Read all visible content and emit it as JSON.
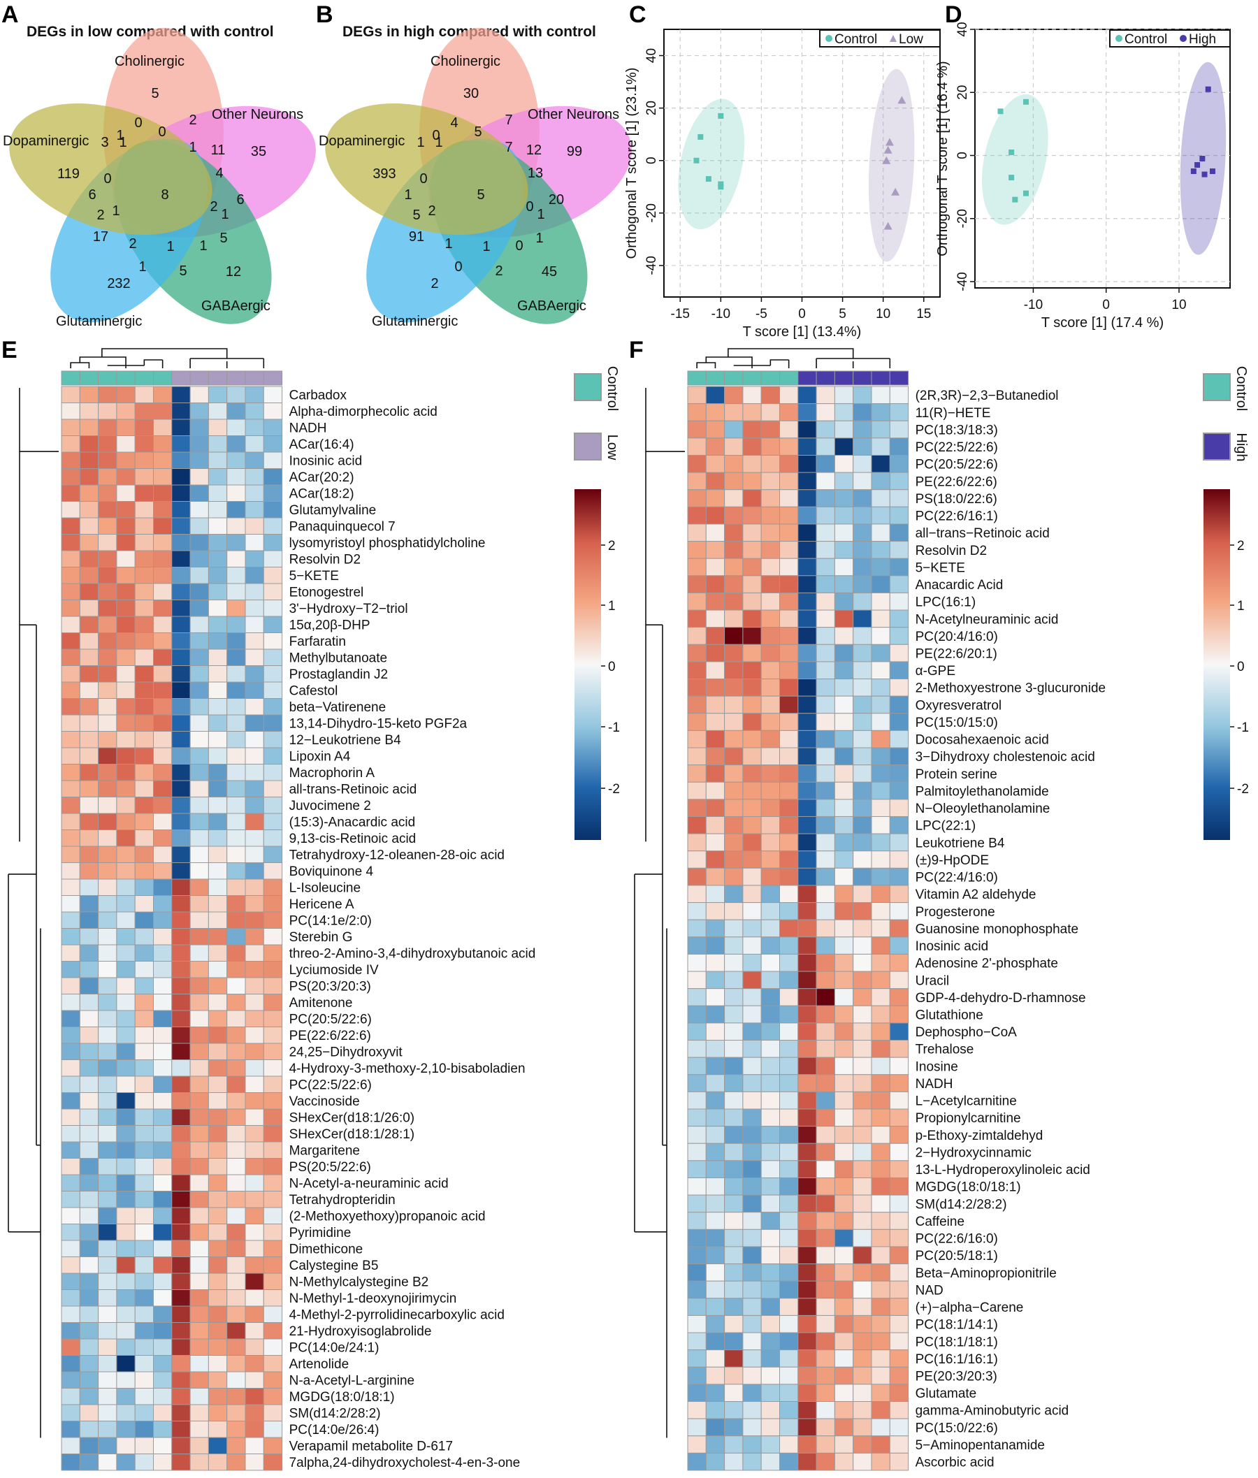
{
  "panel_letters": [
    "A",
    "B",
    "C",
    "D",
    "E",
    "F"
  ],
  "colors": {
    "control": "#5cc2b4",
    "low": "#a99cc0",
    "high": "#4a3ca8",
    "heat_low": "#08306b",
    "heat_mid": "#f7f7f7",
    "heat_high": "#67000d",
    "cholinergic": "#f7a596",
    "other_neurons": "#ee84e6",
    "gabaergic": "#33aa80",
    "glutaminergic": "#42b7ee",
    "dopaminergic": "#bdb549"
  },
  "venn": [
    {
      "title": "DEGs in low compared with control",
      "set_labels": [
        "Cholinergic",
        "Other Neurons",
        "GABAergic",
        "Glutaminergic",
        "Dopaminergic"
      ],
      "counts": [
        "5",
        "2",
        "0",
        "0",
        "1",
        "1",
        "11",
        "35",
        "4",
        "6",
        "2",
        "1",
        "5",
        "8",
        "12",
        "1",
        "1",
        "1",
        "5",
        "2",
        "232",
        "17",
        "2",
        "1",
        "6",
        "0",
        "119",
        "1",
        "3"
      ]
    },
    {
      "title": "DEGs in high compared with control",
      "set_labels": [
        "Cholinergic",
        "Other Neurons",
        "GABAergic",
        "Glutaminergic",
        "Dopaminergic"
      ],
      "counts": [
        "30",
        "7",
        "4",
        "5",
        "0",
        "7",
        "12",
        "99",
        "13",
        "20",
        "0",
        "1",
        "1",
        "5",
        "45",
        "1",
        "0",
        "0",
        "2",
        "1",
        "2",
        "91",
        "5",
        "2",
        "1",
        "0",
        "393",
        "1",
        "1"
      ]
    }
  ],
  "chart_data": [
    {
      "type": "scatter",
      "panel": "C",
      "xlabel": "T score [1] (13.4%)",
      "ylabel": "Orthogonal T score [1] (23.1%)",
      "xlim": [
        -17,
        17
      ],
      "ylim": [
        -52,
        50
      ],
      "xticks": [
        "-15",
        "-10",
        "-5",
        "0",
        "5",
        "10",
        "15"
      ],
      "yticks": [
        "40",
        "20",
        "0",
        "-20",
        "-40"
      ],
      "legend_position": "top-right",
      "grid": true,
      "series": [
        {
          "name": "Control",
          "marker": "square",
          "points": [
            [
              -10,
              17
            ],
            [
              -12.5,
              9
            ],
            [
              -13,
              0
            ],
            [
              -11.5,
              -7
            ],
            [
              -10,
              -9
            ],
            [
              -10,
              -10
            ]
          ]
        },
        {
          "name": "Low",
          "marker": "triangle",
          "points": [
            [
              12.3,
              23
            ],
            [
              10.8,
              7
            ],
            [
              10.6,
              4
            ],
            [
              10.4,
              0
            ],
            [
              11.5,
              -12
            ],
            [
              10.6,
              -25
            ]
          ]
        }
      ]
    },
    {
      "type": "scatter",
      "panel": "D",
      "xlabel": "T score [1] (17.4 %)",
      "ylabel": "Orthogonal T score [1] (16.4 %)",
      "xlim": [
        -18,
        17
      ],
      "ylim": [
        -42,
        40
      ],
      "xticks": [
        "-10",
        "0",
        "10"
      ],
      "yticks": [
        "40",
        "20",
        "0",
        "-20",
        "-40"
      ],
      "legend_position": "top-right",
      "grid": true,
      "series": [
        {
          "name": "Control",
          "marker": "square",
          "points": [
            [
              -14.5,
              14
            ],
            [
              -11,
              17
            ],
            [
              -13,
              1
            ],
            [
              -13,
              -7
            ],
            [
              -11,
              -12
            ],
            [
              -12.5,
              -14
            ]
          ]
        },
        {
          "name": "High",
          "marker": "square",
          "points": [
            [
              14,
              21
            ],
            [
              13.2,
              -1
            ],
            [
              14.6,
              -5
            ],
            [
              12.5,
              -3
            ],
            [
              13.5,
              -6
            ],
            [
              12,
              -5
            ]
          ]
        }
      ]
    },
    {
      "type": "heatmap",
      "panel": "E",
      "legend": [
        "Control",
        "Low"
      ],
      "color_scale_ticks": [
        "2",
        "1",
        "0",
        "-1",
        "-2"
      ],
      "rows": [
        "Carbadox",
        "Alpha-dimorphecolic acid",
        "NADH",
        "ACar(16:4)",
        "Inosinic acid",
        "ACar(20:2)",
        "ACar(18:2)",
        "Glutamylvaline",
        "Panaquinquecol 7",
        "lysomyristoyl phosphatidylcholine",
        "Resolvin D2",
        "5−KETE",
        "Etonogestrel",
        "3'−Hydroxy−T2−triol",
        "15α,20β-DHP",
        "Farfaratin",
        "Methylbutanoate",
        "Prostaglandin J2",
        "Cafestol",
        "beta−Vatirenene",
        "13,14-Dihydro-15-keto PGF2a",
        "12−Leukotriene B4",
        "Lipoxin A4",
        "Macrophorin A",
        "all-trans-Retinoic acid",
        "Juvocimene 2",
        "(15:3)-Anacardic acid",
        "9,13-cis-Retinoic acid",
        "Tetrahydroxy-12-oleanen-28-oic acid",
        "Boviquinone 4",
        "L-Isoleucine",
        "Hericene A",
        "PC(14:1e/2:0)",
        "Sterebin G",
        "threo-2-Amino-3,4-dihydroxybutanoic acid",
        "Lyciumoside IV",
        "PS(20:3/20:3)",
        "Amitenone",
        "PC(20:5/22:6)",
        "PE(22:6/22:6)",
        "24,25−Dihydroxyvit",
        "4-Hydroxy-3-methoxy-2,10-bisaboladien",
        "PC(22:5/22:6)",
        "Vaccinoside",
        "SHexCer(d18:1/26:0)",
        "SHexCer(d18:1/28:1)",
        "Margaritene",
        "PS(20:5/22:6)",
        "N-Acetyl-a-neuraminic acid",
        "Tetrahydropteridin",
        "(2-Methoxyethoxy)propanoic acid",
        "Pyrimidine",
        "Dimethicone",
        "Calystegine B5",
        "N-Methylcalystegine B2",
        "N-Methyl-1-deoxynojirimycin",
        "4-Methyl-2-pyrrolidinecarboxylic acid",
        "21-Hydroxyisoglabrolide",
        "PC(14:0e/24:1)",
        "Artenolide",
        "N-a-Acetyl-L-arginine",
        "MGDG(18:0/18:1)",
        "SM(d14:2/28:2)",
        "PC(14:0e/26:4)",
        "Verapamil metabolite D-617",
        "7alpha,24-dihydroxycholest-4-en-3-one"
      ]
    },
    {
      "type": "heatmap",
      "panel": "F",
      "legend": [
        "Control",
        "High"
      ],
      "color_scale_ticks": [
        "2",
        "1",
        "0",
        "-1",
        "-2"
      ],
      "rows": [
        "(2R,3R)−2,3−Butanediol",
        "11(R)−HETE",
        "PC(18:3/18:3)",
        "PC(22:5/22:6)",
        "PC(20:5/22:6)",
        "PE(22:6/22:6)",
        "PS(18:0/22:6)",
        "PC(22:6/16:1)",
        "all−trans−Retinoic acid",
        "Resolvin D2",
        "5−KETE",
        "Anacardic Acid",
        "LPC(16:1)",
        "N-Acetylneuraminic acid",
        "PC(20:4/16:0)",
        "PE(22:6/20:1)",
        "α-GPE",
        "2-Methoxyestrone 3-glucuronide",
        "Oxyresveratrol",
        "PC(15:0/15:0)",
        "Docosahexaenoic acid",
        "3−Dihydroxy cholestenoic acid",
        "Protein serine",
        "Palmitoylethanolamide",
        "N−Oleoylethanolamine",
        "LPC(22:1)",
        "Leukotriene B4",
        "(±)9-HpODE",
        "PC(22:4/16:0)",
        "Vitamin A2 aldehyde",
        "Progesterone",
        "Guanosine monophosphate",
        "Inosinic acid",
        "Adenosine 2'-phosphate",
        "Uracil",
        "GDP-4-dehydro-D-rhamnose",
        "Glutathione",
        "Dephospho−CoA",
        "Trehalose",
        "Inosine",
        "NADH",
        "L−Acetylcarnitine",
        "Propionylcarnitine",
        "p-Ethoxy-zimtaldehyd",
        "2−Hydroxycinnamic",
        "13-L-Hydroperoxylinoleic acid",
        "MGDG(18:0/18:1)",
        "SM(d14:2/28:2)",
        "Caffeine",
        "PC(22:6/16:0)",
        "PC(20:5/18:1)",
        "Beta−Aminopropionitrile",
        "NAD",
        "(+)−alpha−Carene",
        "PC(18:1/14:1)",
        "PC(18:1/18:1)",
        "PC(16:1/16:1)",
        "PE(20:3/20:3)",
        "Glutamate",
        "gamma-Aminobutyric acid",
        "PC(15:0/22:6)",
        "5−Aminopentanamide",
        "Ascorbic acid"
      ]
    }
  ]
}
